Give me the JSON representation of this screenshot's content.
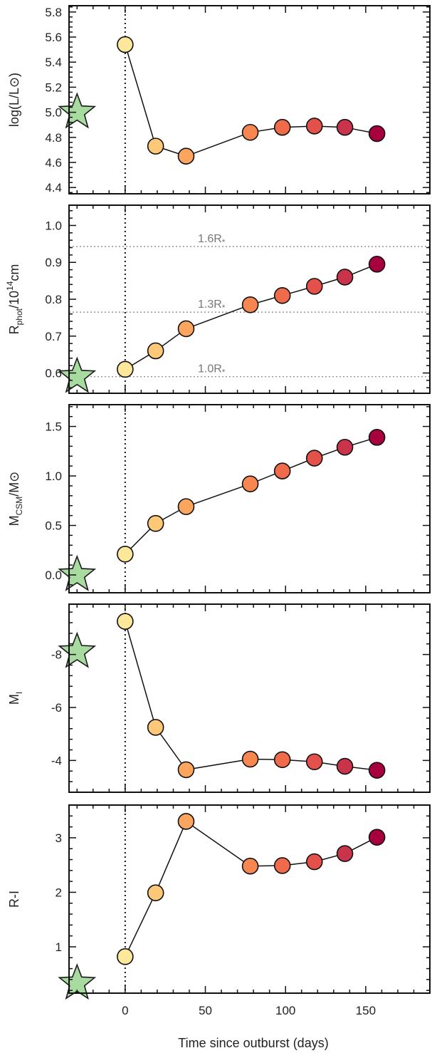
{
  "colors": {
    "point_gradient": [
      "#fde79a",
      "#fdc878",
      "#fca55f",
      "#f78650",
      "#ef6b4a",
      "#e4504a",
      "#c9344b",
      "#a8003f"
    ],
    "star_fill": "#a8dba0",
    "star_edge": "#1a1a1a",
    "annotation": "#808080"
  },
  "chart_data": [
    {
      "type": "line",
      "panel": 1,
      "ylabel": "log(L/L⊙)",
      "ylim": [
        4.35,
        5.85
      ],
      "y_ticks": [
        "4.4",
        "4.6",
        "4.8",
        "5.0",
        "5.2",
        "5.4",
        "5.6",
        "5.8"
      ],
      "x": [
        0,
        19,
        38,
        78,
        98,
        118,
        137,
        157
      ],
      "y": [
        5.54,
        4.73,
        4.65,
        4.84,
        4.88,
        4.89,
        4.88,
        4.83
      ],
      "star": {
        "x": -30,
        "y": 5.0
      },
      "vline_x": 0,
      "hlines": []
    },
    {
      "type": "line",
      "panel": 2,
      "ylabel": {
        "main": "R",
        "sub": "phot",
        "mid": "/10",
        "sup": "14",
        "end": "cm"
      },
      "ylim": [
        0.545,
        1.055
      ],
      "y_ticks": [
        "0.6",
        "0.7",
        "0.8",
        "0.9",
        "1.0"
      ],
      "x": [
        0,
        19,
        38,
        78,
        98,
        118,
        137,
        157
      ],
      "y": [
        0.61,
        0.66,
        0.72,
        0.785,
        0.81,
        0.835,
        0.86,
        0.895
      ],
      "star": {
        "x": -30,
        "y": 0.59
      },
      "vline_x": 0,
      "hlines": [
        {
          "y": 0.59,
          "label": "1.0R",
          "sub": "*"
        },
        {
          "y": 0.765,
          "label": "1.3R",
          "sub": "*"
        },
        {
          "y": 0.943,
          "label": "1.6R",
          "sub": "*"
        }
      ]
    },
    {
      "type": "line",
      "panel": 3,
      "ylabel": {
        "main": "M",
        "sub": "CSM",
        "end": "/M⊙"
      },
      "ylim": [
        -0.18,
        1.72
      ],
      "y_ticks": [
        "0.0",
        "0.5",
        "1.0",
        "1.5"
      ],
      "x": [
        0,
        19,
        38,
        78,
        98,
        118,
        137,
        157
      ],
      "y": [
        0.21,
        0.52,
        0.69,
        0.92,
        1.05,
        1.18,
        1.29,
        1.39
      ],
      "star": {
        "x": -30,
        "y": 0.0
      },
      "vline_x": 0,
      "hlines": []
    },
    {
      "type": "line",
      "panel": 4,
      "ylabel": {
        "main": "M",
        "sub": "I"
      },
      "ylim": [
        -2.8,
        -9.9
      ],
      "y_ticks": [
        "-4",
        "-6",
        "-8"
      ],
      "x": [
        0,
        19,
        38,
        78,
        98,
        118,
        137,
        157
      ],
      "y": [
        -9.25,
        -5.25,
        -3.65,
        -4.05,
        -4.03,
        -3.95,
        -3.78,
        -3.63
      ],
      "star": {
        "x": -30,
        "y": -8.1
      },
      "vline_x": 0,
      "hlines": []
    },
    {
      "type": "line",
      "panel": 5,
      "ylabel": "R-I",
      "ylim": [
        0.15,
        3.6
      ],
      "y_ticks": [
        "1",
        "2",
        "3"
      ],
      "x": [
        0,
        19,
        38,
        78,
        98,
        118,
        137,
        157
      ],
      "y": [
        0.82,
        1.99,
        3.3,
        2.48,
        2.49,
        2.56,
        2.71,
        3.01
      ],
      "star": {
        "x": -30,
        "y": 0.33
      },
      "vline_x": 0,
      "hlines": []
    }
  ],
  "x_axis": {
    "xlim": [
      -35,
      190
    ],
    "ticks": [
      "0",
      "50",
      "100",
      "150"
    ],
    "label": "Time since outburst (days)"
  }
}
